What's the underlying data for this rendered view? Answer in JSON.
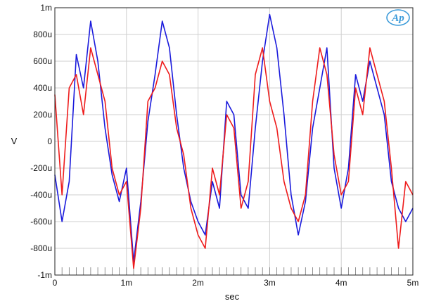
{
  "chart_data": {
    "type": "line",
    "title": "",
    "xlabel": "sec",
    "ylabel": "V",
    "xlim": [
      0,
      0.005
    ],
    "ylim": [
      -0.001,
      0.001
    ],
    "x_ticks": [
      0,
      0.001,
      0.002,
      0.003,
      0.004,
      0.005
    ],
    "x_tick_labels": [
      "0",
      "1m",
      "2m",
      "3m",
      "4m",
      "5m"
    ],
    "y_ticks": [
      0.001,
      0.0008,
      0.0006,
      0.0004,
      0.0002,
      0,
      -0.0002,
      -0.0004,
      -0.0006,
      -0.0008,
      -0.001
    ],
    "y_tick_labels": [
      "1m",
      "800u",
      "600u",
      "400u",
      "200u",
      "0",
      "-200u",
      "-400u",
      "-600u",
      "-800u",
      "-1m"
    ],
    "grid": true,
    "legend": "none",
    "colors": {
      "grid": "#cfcfcf",
      "background": "#ffffff",
      "series_blue": "#1a1adc",
      "series_red": "#ee1c1c",
      "logo": "#3a9ad9"
    },
    "series": [
      {
        "color": "#1a1adc",
        "x": [
          0.0,
          0.0001,
          0.0002,
          0.0003,
          0.0004,
          0.0005,
          0.0006,
          0.0007,
          0.0008,
          0.0009,
          0.001,
          0.0011,
          0.0012,
          0.0013,
          0.0014,
          0.0015,
          0.0016,
          0.0017,
          0.0018,
          0.0019,
          0.002,
          0.0021,
          0.0022,
          0.0023,
          0.0024,
          0.0025,
          0.0026,
          0.0027,
          0.0028,
          0.0029,
          0.003,
          0.0031,
          0.0032,
          0.0033,
          0.0034,
          0.0035,
          0.0036,
          0.0037,
          0.0038,
          0.0039,
          0.004,
          0.0041,
          0.0042,
          0.0043,
          0.0044,
          0.0045,
          0.0046,
          0.0047,
          0.0048,
          0.0049,
          0.005
        ],
        "y": [
          -0.00025,
          -0.0006,
          -0.0003,
          0.00065,
          0.0004,
          0.0009,
          0.0006,
          0.0001,
          -0.00025,
          -0.00045,
          -0.0002,
          -0.0009,
          -0.00045,
          0.00015,
          0.0005,
          0.0009,
          0.0007,
          0.0002,
          -0.0002,
          -0.00045,
          -0.0006,
          -0.0007,
          -0.0003,
          -0.0005,
          0.0003,
          0.0002,
          -0.0004,
          -0.0005,
          0.0001,
          0.0006,
          0.00095,
          0.0007,
          0.0002,
          -0.0004,
          -0.0007,
          -0.00045,
          0.0001,
          0.0004,
          0.0007,
          -0.0002,
          -0.0005,
          -0.0002,
          0.0005,
          0.0003,
          0.0006,
          0.0004,
          0.0002,
          -0.0003,
          -0.0005,
          -0.0006,
          -0.0005
        ]
      },
      {
        "color": "#ee1c1c",
        "x": [
          0.0,
          0.0001,
          0.0002,
          0.0003,
          0.0004,
          0.0005,
          0.0006,
          0.0007,
          0.0008,
          0.0009,
          0.001,
          0.0011,
          0.0012,
          0.0013,
          0.0014,
          0.0015,
          0.0016,
          0.0017,
          0.0018,
          0.0019,
          0.002,
          0.0021,
          0.0022,
          0.0023,
          0.0024,
          0.0025,
          0.0026,
          0.0027,
          0.0028,
          0.0029,
          0.003,
          0.0031,
          0.0032,
          0.0033,
          0.0034,
          0.0035,
          0.0036,
          0.0037,
          0.0038,
          0.0039,
          0.004,
          0.0041,
          0.0042,
          0.0043,
          0.0044,
          0.0045,
          0.0046,
          0.0047,
          0.0048,
          0.0049,
          0.005
        ],
        "y": [
          0.00035,
          -0.0004,
          0.0004,
          0.0005,
          0.0002,
          0.0007,
          0.0005,
          0.0003,
          -0.0002,
          -0.0004,
          -0.0003,
          -0.00095,
          -0.0005,
          0.0003,
          0.0004,
          0.0006,
          0.0005,
          0.0001,
          -0.0001,
          -0.0005,
          -0.0007,
          -0.0008,
          -0.0002,
          -0.0004,
          0.0002,
          0.0001,
          -0.0005,
          -0.0003,
          0.0005,
          0.0007,
          0.0003,
          0.0001,
          -0.0003,
          -0.0005,
          -0.0006,
          -0.0004,
          0.0003,
          0.0007,
          0.0005,
          -0.0001,
          -0.0004,
          -0.0003,
          0.0004,
          0.0002,
          0.0007,
          0.0005,
          0.0003,
          -0.0002,
          -0.0008,
          -0.0003,
          -0.0004
        ]
      }
    ]
  },
  "logo": {
    "text": "Ap"
  }
}
